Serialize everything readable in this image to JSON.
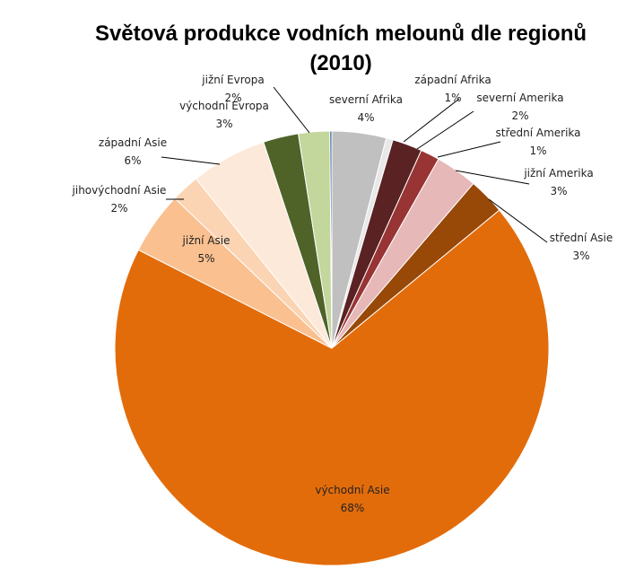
{
  "chart_data": {
    "type": "pie",
    "title_line1": "Světová produkce vodních melounů dle regionů",
    "title_line2": "(2010)",
    "legend": "none",
    "slices": [
      {
        "name": "severní Afrika",
        "pct_label": "4%",
        "value": 4.0,
        "color": "#c0c0c0"
      },
      {
        "name": "západní Afrika",
        "pct_label": "1%",
        "value": 0.5,
        "color": "#e8e8e8"
      },
      {
        "name": "severní Amerika",
        "pct_label": "2%",
        "value": 2.2,
        "color": "#5a2222"
      },
      {
        "name": "střední Amerika",
        "pct_label": "1%",
        "value": 1.4,
        "color": "#983434"
      },
      {
        "name": "jižní Amerika",
        "pct_label": "3%",
        "value": 3.1,
        "color": "#e6b8b8"
      },
      {
        "name": "střední Asie",
        "pct_label": "3%",
        "value": 2.7,
        "color": "#984807"
      },
      {
        "name": "východní Asie",
        "pct_label": "68%",
        "value": 67.8,
        "color": "#e36c0a"
      },
      {
        "name": "jižní Asie",
        "pct_label": "5%",
        "value": 4.6,
        "color": "#fac090"
      },
      {
        "name": "jihovýchodní Asie",
        "pct_label": "2%",
        "value": 2.1,
        "color": "#fbd4b4"
      },
      {
        "name": "západní Asie",
        "pct_label": "6%",
        "value": 5.6,
        "color": "#fde9d9"
      },
      {
        "name": "východní Evropa",
        "pct_label": "3%",
        "value": 2.6,
        "color": "#4f6228"
      },
      {
        "name": "jižní Evropa",
        "pct_label": "2%",
        "value": 2.3,
        "color": "#c3d69b"
      },
      {
        "name": "",
        "pct_label": "",
        "value": 0.15,
        "color": "#376092"
      }
    ]
  }
}
